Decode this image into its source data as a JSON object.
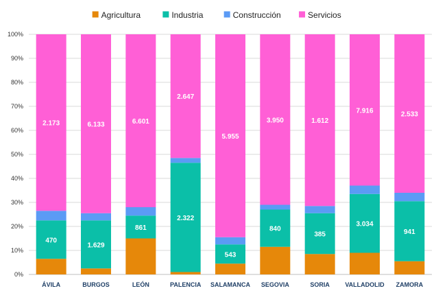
{
  "chart_data": {
    "type": "bar",
    "stacked": true,
    "percent_stacked": true,
    "categories": [
      "ÁVILA",
      "BURGOS",
      "LEÓN",
      "PALENCIA",
      "SALAMANCA",
      "SEGOVIA",
      "SORIA",
      "VALLADOLID",
      "ZAMORA"
    ],
    "series": [
      {
        "name": "Agricultura",
        "color": "#e6880a",
        "values": [
          6.5,
          2.5,
          15.0,
          1.0,
          4.5,
          11.5,
          8.5,
          9.0,
          5.5
        ],
        "labels": [
          "",
          "",
          "",
          "",
          "",
          "",
          "",
          "",
          ""
        ]
      },
      {
        "name": "Industria",
        "color": "#0bbfa8",
        "values": [
          16.0,
          20.0,
          9.5,
          45.5,
          8.0,
          15.5,
          17.0,
          24.5,
          25.0
        ],
        "labels": [
          "470",
          "1.629",
          "861",
          "2.322",
          "543",
          "840",
          "385",
          "3.034",
          "941"
        ]
      },
      {
        "name": "Construcción",
        "color": "#5b9bf5",
        "values": [
          4.0,
          3.0,
          3.5,
          2.0,
          3.0,
          2.0,
          3.0,
          3.5,
          3.5
        ],
        "labels": [
          "",
          "",
          "",
          "",
          "",
          "",
          "",
          "",
          ""
        ]
      },
      {
        "name": "Servicios",
        "color": "#ff5fd6",
        "values": [
          73.5,
          74.5,
          72.0,
          51.5,
          84.5,
          71.0,
          71.5,
          63.0,
          66.0
        ],
        "labels": [
          "2.173",
          "6.133",
          "6.601",
          "2.647",
          "5.955",
          "3.950",
          "1.612",
          "7.916",
          "2.533"
        ]
      }
    ],
    "yticks": [
      "0%",
      "10%",
      "20%",
      "30%",
      "40%",
      "50%",
      "60%",
      "70%",
      "80%",
      "90%",
      "100%"
    ],
    "ylim": [
      0,
      100
    ],
    "title": "",
    "xlabel": "",
    "ylabel": "",
    "grid": true,
    "legend_position": "top-center"
  }
}
